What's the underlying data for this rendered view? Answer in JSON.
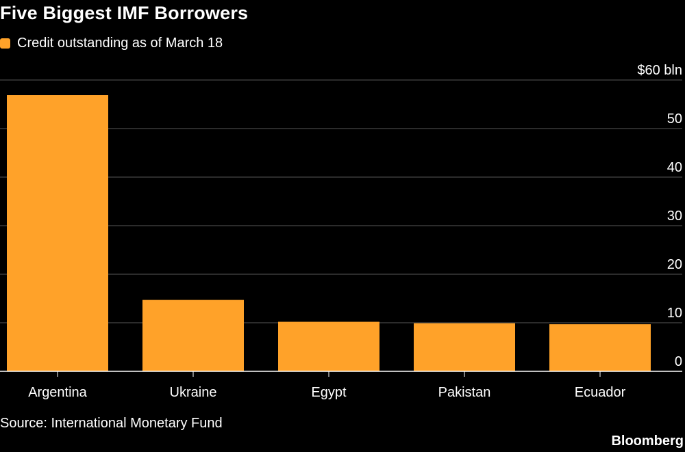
{
  "title": "Five Biggest IMF Borrowers",
  "legend": {
    "label": "Credit outstanding as of March 18"
  },
  "source": "Source: International Monetary Fund",
  "brand": "Bloomberg",
  "colors": {
    "bar": "#FFA229",
    "background": "#000000",
    "grid": "#595959",
    "text": "#FFFFFF"
  },
  "chart_data": {
    "type": "bar",
    "categories": [
      "Argentina",
      "Ukraine",
      "Egypt",
      "Pakistan",
      "Ecuador"
    ],
    "series": [
      {
        "name": "Credit outstanding as of March 18",
        "values": [
          56.9,
          14.7,
          10.2,
          9.9,
          9.7
        ]
      }
    ],
    "ylim": [
      0,
      60
    ],
    "yticks": [
      0,
      10,
      20,
      30,
      40,
      50,
      60
    ],
    "ytick_labels": [
      "0",
      "10",
      "20",
      "30",
      "40",
      "50",
      "$60 bln"
    ],
    "y_axis_position": "right",
    "grid": true,
    "legend_position": "top-left"
  }
}
